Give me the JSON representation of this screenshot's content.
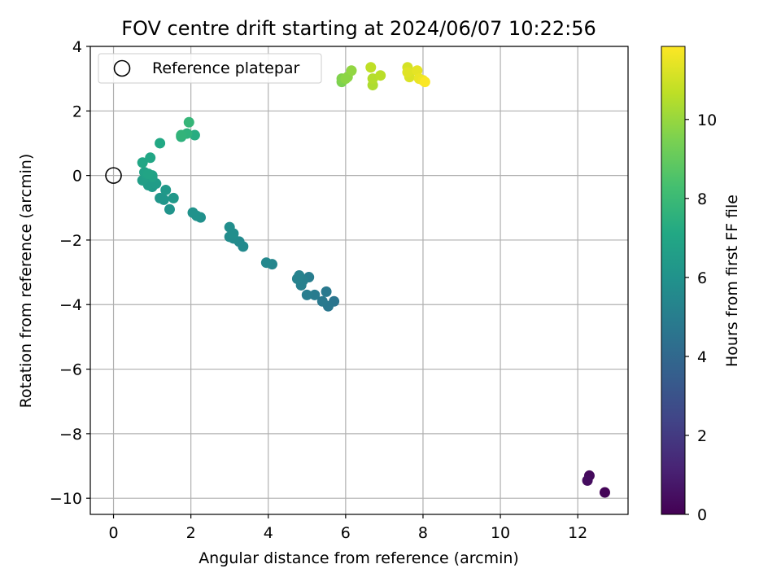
{
  "chart_data": {
    "type": "scatter",
    "title": "FOV centre drift starting at 2024/06/07 10:22:56",
    "xlabel": "Angular distance from reference (arcmin)",
    "ylabel": "Rotation from reference (arcmin)",
    "xlim": [
      -0.6,
      13.3
    ],
    "ylim": [
      -10.5,
      4.0
    ],
    "xticks": [
      "0",
      "2",
      "4",
      "6",
      "8",
      "10",
      "12"
    ],
    "xtick_values": [
      0,
      2,
      4,
      6,
      8,
      10,
      12
    ],
    "yticks": [
      "−10",
      "−8",
      "−6",
      "−4",
      "−2",
      "0",
      "2",
      "4"
    ],
    "ytick_values": [
      -10,
      -8,
      -6,
      -4,
      -2,
      0,
      2,
      4
    ],
    "grid": true,
    "legend_position": "top-left",
    "legend_label": "Reference platepar",
    "reference_point": {
      "x": 0,
      "y": 0
    },
    "colorbar": {
      "label": "Hours from first FF file",
      "colormap": "viridis",
      "range": [
        0,
        11.85
      ],
      "ticks": [
        "0",
        "2",
        "4",
        "6",
        "8",
        "10"
      ],
      "tick_values": [
        0,
        2,
        4,
        6,
        8,
        10
      ]
    },
    "points": [
      {
        "x": 12.7,
        "y": -9.82,
        "h": 0.1
      },
      {
        "x": 12.3,
        "y": -9.3,
        "h": 0.3
      },
      {
        "x": 12.25,
        "y": -9.45,
        "h": 0.4
      },
      {
        "x": 5.7,
        "y": -3.9,
        "h": 4.6
      },
      {
        "x": 5.55,
        "y": -4.05,
        "h": 4.7
      },
      {
        "x": 5.5,
        "y": -3.6,
        "h": 4.8
      },
      {
        "x": 5.4,
        "y": -3.9,
        "h": 4.8
      },
      {
        "x": 5.2,
        "y": -3.7,
        "h": 4.9
      },
      {
        "x": 5.0,
        "y": -3.7,
        "h": 5.0
      },
      {
        "x": 5.05,
        "y": -3.15,
        "h": 5.0
      },
      {
        "x": 4.85,
        "y": -3.4,
        "h": 5.1
      },
      {
        "x": 4.9,
        "y": -3.25,
        "h": 5.1
      },
      {
        "x": 4.75,
        "y": -3.2,
        "h": 5.2
      },
      {
        "x": 4.8,
        "y": -3.1,
        "h": 5.2
      },
      {
        "x": 4.1,
        "y": -2.75,
        "h": 5.4
      },
      {
        "x": 3.95,
        "y": -2.7,
        "h": 5.5
      },
      {
        "x": 3.35,
        "y": -2.2,
        "h": 5.6
      },
      {
        "x": 3.25,
        "y": -2.05,
        "h": 5.6
      },
      {
        "x": 3.1,
        "y": -1.95,
        "h": 5.7
      },
      {
        "x": 3.0,
        "y": -1.9,
        "h": 5.7
      },
      {
        "x": 3.1,
        "y": -1.8,
        "h": 5.8
      },
      {
        "x": 3.0,
        "y": -1.6,
        "h": 5.8
      },
      {
        "x": 2.25,
        "y": -1.3,
        "h": 5.9
      },
      {
        "x": 2.15,
        "y": -1.25,
        "h": 6.0
      },
      {
        "x": 2.05,
        "y": -1.15,
        "h": 6.0
      },
      {
        "x": 1.45,
        "y": -1.05,
        "h": 6.1
      },
      {
        "x": 1.3,
        "y": -0.75,
        "h": 6.2
      },
      {
        "x": 1.2,
        "y": -0.7,
        "h": 6.2
      },
      {
        "x": 1.55,
        "y": -0.7,
        "h": 6.3
      },
      {
        "x": 1.35,
        "y": -0.45,
        "h": 6.3
      },
      {
        "x": 1.0,
        "y": -0.35,
        "h": 6.4
      },
      {
        "x": 0.9,
        "y": -0.3,
        "h": 6.5
      },
      {
        "x": 1.1,
        "y": -0.25,
        "h": 6.5
      },
      {
        "x": 0.75,
        "y": -0.15,
        "h": 6.6
      },
      {
        "x": 0.8,
        "y": -0.1,
        "h": 6.6
      },
      {
        "x": 1.0,
        "y": -0.05,
        "h": 6.7
      },
      {
        "x": 0.85,
        "y": 0.0,
        "h": 6.7
      },
      {
        "x": 1.0,
        "y": 0.0,
        "h": 6.8
      },
      {
        "x": 0.8,
        "y": 0.1,
        "h": 6.8
      },
      {
        "x": 0.9,
        "y": 0.05,
        "h": 6.9
      },
      {
        "x": 0.75,
        "y": 0.4,
        "h": 7.0
      },
      {
        "x": 0.95,
        "y": 0.55,
        "h": 7.0
      },
      {
        "x": 1.2,
        "y": 1.0,
        "h": 7.1
      },
      {
        "x": 2.1,
        "y": 1.25,
        "h": 7.3
      },
      {
        "x": 1.75,
        "y": 1.2,
        "h": 7.5
      },
      {
        "x": 1.9,
        "y": 1.3,
        "h": 7.6
      },
      {
        "x": 1.75,
        "y": 1.25,
        "h": 7.7
      },
      {
        "x": 1.95,
        "y": 1.65,
        "h": 7.8
      },
      {
        "x": 5.9,
        "y": 2.9,
        "h": 9.5
      },
      {
        "x": 5.9,
        "y": 3.0,
        "h": 9.6
      },
      {
        "x": 6.05,
        "y": 3.05,
        "h": 9.8
      },
      {
        "x": 6.15,
        "y": 3.25,
        "h": 9.9
      },
      {
        "x": 6.0,
        "y": 3.0,
        "h": 9.8
      },
      {
        "x": 6.7,
        "y": 2.8,
        "h": 10.4
      },
      {
        "x": 6.7,
        "y": 3.0,
        "h": 10.5
      },
      {
        "x": 6.9,
        "y": 3.1,
        "h": 10.6
      },
      {
        "x": 6.65,
        "y": 3.35,
        "h": 10.7
      },
      {
        "x": 7.6,
        "y": 3.35,
        "h": 11.1
      },
      {
        "x": 7.65,
        "y": 3.05,
        "h": 11.2
      },
      {
        "x": 7.6,
        "y": 3.2,
        "h": 11.3
      },
      {
        "x": 7.85,
        "y": 3.25,
        "h": 11.4
      },
      {
        "x": 7.9,
        "y": 3.0,
        "h": 11.5
      },
      {
        "x": 8.0,
        "y": 2.95,
        "h": 11.6
      },
      {
        "x": 8.05,
        "y": 2.9,
        "h": 11.8
      }
    ]
  }
}
